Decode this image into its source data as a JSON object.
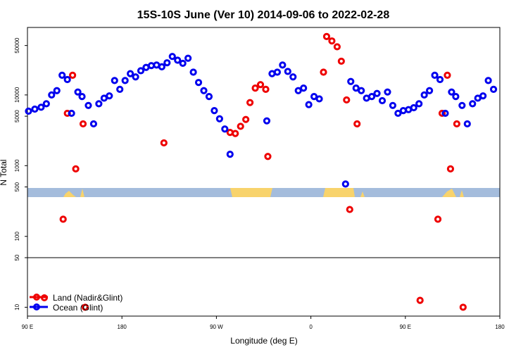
{
  "chart_data": {
    "type": "scatter",
    "title": "15S-10S June (Ver 10)   2014-09-06 to 2022-02-28",
    "xlabel": "Longitude (deg E)",
    "ylabel": "N Total",
    "x_ticks": [
      {
        "value": 90,
        "label": "90 E"
      },
      {
        "value": 180,
        "label": "180"
      },
      {
        "value": 270,
        "label": "90 W"
      },
      {
        "value": 360,
        "label": "0"
      },
      {
        "value": 450,
        "label": "90 E"
      },
      {
        "value": 540,
        "label": "180"
      }
    ],
    "xlim": [
      90,
      540
    ],
    "y_scale": "log",
    "upper_panel": {
      "ylim": [
        50,
        90000
      ],
      "y_ticks": [
        {
          "value": 100,
          "label": "100"
        },
        {
          "value": 500,
          "label": "500"
        },
        {
          "value": 1000,
          "label": "1000"
        },
        {
          "value": 5000,
          "label": "5000"
        },
        {
          "value": 10000,
          "label": "10000"
        },
        {
          "value": 50000,
          "label": "50000"
        }
      ]
    },
    "lower_panel": {
      "ylim": [
        7.5,
        50
      ],
      "y_ticks": [
        {
          "value": 10,
          "label": "10"
        },
        {
          "value": 50,
          "label": "50"
        }
      ]
    },
    "legend": {
      "position": "bottom-left",
      "entries": [
        {
          "name": "Land (Nadir&Glint)",
          "color": "#ee0000"
        },
        {
          "name": "Ocean (Glint)",
          "color": "#0000ee"
        }
      ]
    },
    "series": [
      {
        "name": "Land (Nadir&Glint)",
        "color": "#ee0000",
        "points": [
          {
            "x": 124,
            "y": 175
          },
          {
            "x": 128,
            "y": 5500
          },
          {
            "x": 133,
            "y": 19000
          },
          {
            "x": 136,
            "y": 900
          },
          {
            "x": 143,
            "y": 3900
          },
          {
            "x": 145,
            "y": 10
          },
          {
            "x": 220,
            "y": 2100
          },
          {
            "x": 283,
            "y": 2950
          },
          {
            "x": 288,
            "y": 2850
          },
          {
            "x": 293,
            "y": 3600
          },
          {
            "x": 298,
            "y": 4500
          },
          {
            "x": 302,
            "y": 7800
          },
          {
            "x": 307,
            "y": 12500
          },
          {
            "x": 312,
            "y": 14000
          },
          {
            "x": 317,
            "y": 12000
          },
          {
            "x": 319,
            "y": 1350
          },
          {
            "x": 372,
            "y": 21000
          },
          {
            "x": 375,
            "y": 67000
          },
          {
            "x": 380,
            "y": 58000
          },
          {
            "x": 385,
            "y": 48000
          },
          {
            "x": 389,
            "y": 30000
          },
          {
            "x": 394,
            "y": 8500
          },
          {
            "x": 397,
            "y": 240
          },
          {
            "x": 404,
            "y": 3900
          },
          {
            "x": 464,
            "y": 12.5
          },
          {
            "x": 481,
            "y": 175
          },
          {
            "x": 485,
            "y": 5500
          },
          {
            "x": 490,
            "y": 19000
          },
          {
            "x": 493,
            "y": 900
          },
          {
            "x": 499,
            "y": 3900
          },
          {
            "x": 505,
            "y": 10
          }
        ]
      },
      {
        "name": "Ocean (Glint)",
        "color": "#0000ee",
        "points": [
          {
            "x": 91,
            "y": 5900
          },
          {
            "x": 97,
            "y": 6300
          },
          {
            "x": 103,
            "y": 6700
          },
          {
            "x": 108,
            "y": 7500
          },
          {
            "x": 113,
            "y": 10000
          },
          {
            "x": 118,
            "y": 11500
          },
          {
            "x": 123,
            "y": 19000
          },
          {
            "x": 128,
            "y": 16500
          },
          {
            "x": 132,
            "y": 5500
          },
          {
            "x": 138,
            "y": 11000
          },
          {
            "x": 142,
            "y": 9500
          },
          {
            "x": 148,
            "y": 7100
          },
          {
            "x": 153,
            "y": 3900
          },
          {
            "x": 158,
            "y": 7500
          },
          {
            "x": 163,
            "y": 9000
          },
          {
            "x": 168,
            "y": 9700
          },
          {
            "x": 173,
            "y": 16000
          },
          {
            "x": 178,
            "y": 12000
          },
          {
            "x": 183,
            "y": 16000
          },
          {
            "x": 188,
            "y": 20000
          },
          {
            "x": 193,
            "y": 18000
          },
          {
            "x": 198,
            "y": 22000
          },
          {
            "x": 203,
            "y": 24500
          },
          {
            "x": 208,
            "y": 26000
          },
          {
            "x": 213,
            "y": 26500
          },
          {
            "x": 218,
            "y": 25000
          },
          {
            "x": 223,
            "y": 28500
          },
          {
            "x": 228,
            "y": 35000
          },
          {
            "x": 233,
            "y": 31000
          },
          {
            "x": 238,
            "y": 28000
          },
          {
            "x": 243,
            "y": 33000
          },
          {
            "x": 248,
            "y": 21000
          },
          {
            "x": 253,
            "y": 15000
          },
          {
            "x": 258,
            "y": 11500
          },
          {
            "x": 263,
            "y": 9500
          },
          {
            "x": 268,
            "y": 6000
          },
          {
            "x": 273,
            "y": 4600
          },
          {
            "x": 278,
            "y": 3300
          },
          {
            "x": 283,
            "y": 1450
          },
          {
            "x": 318,
            "y": 4300
          },
          {
            "x": 323,
            "y": 20000
          },
          {
            "x": 328,
            "y": 21000
          },
          {
            "x": 333,
            "y": 26500
          },
          {
            "x": 338,
            "y": 21500
          },
          {
            "x": 343,
            "y": 18000
          },
          {
            "x": 348,
            "y": 11500
          },
          {
            "x": 353,
            "y": 12500
          },
          {
            "x": 358,
            "y": 7300
          },
          {
            "x": 363,
            "y": 9500
          },
          {
            "x": 368,
            "y": 8800
          },
          {
            "x": 393,
            "y": 550
          },
          {
            "x": 398,
            "y": 15500
          },
          {
            "x": 403,
            "y": 12500
          },
          {
            "x": 408,
            "y": 11500
          },
          {
            "x": 413,
            "y": 9000
          },
          {
            "x": 418,
            "y": 9500
          },
          {
            "x": 423,
            "y": 10500
          },
          {
            "x": 428,
            "y": 8300
          },
          {
            "x": 433,
            "y": 11000
          },
          {
            "x": 438,
            "y": 7100
          },
          {
            "x": 443,
            "y": 5500
          },
          {
            "x": 448,
            "y": 6000
          },
          {
            "x": 453,
            "y": 6200
          },
          {
            "x": 458,
            "y": 6600
          },
          {
            "x": 463,
            "y": 7500
          },
          {
            "x": 468,
            "y": 10000
          },
          {
            "x": 473,
            "y": 11500
          },
          {
            "x": 478,
            "y": 19000
          },
          {
            "x": 483,
            "y": 16500
          },
          {
            "x": 488,
            "y": 5500
          },
          {
            "x": 494,
            "y": 11000
          },
          {
            "x": 498,
            "y": 9500
          },
          {
            "x": 504,
            "y": 7100
          },
          {
            "x": 509,
            "y": 3900
          },
          {
            "x": 514,
            "y": 7500
          },
          {
            "x": 519,
            "y": 9000
          },
          {
            "x": 524,
            "y": 9700
          },
          {
            "x": 529,
            "y": 16000
          },
          {
            "x": 534,
            "y": 12000
          }
        ]
      }
    ],
    "map_band_colors": {
      "ocean": "#a4bcdc",
      "land": "#f8d36c"
    }
  }
}
